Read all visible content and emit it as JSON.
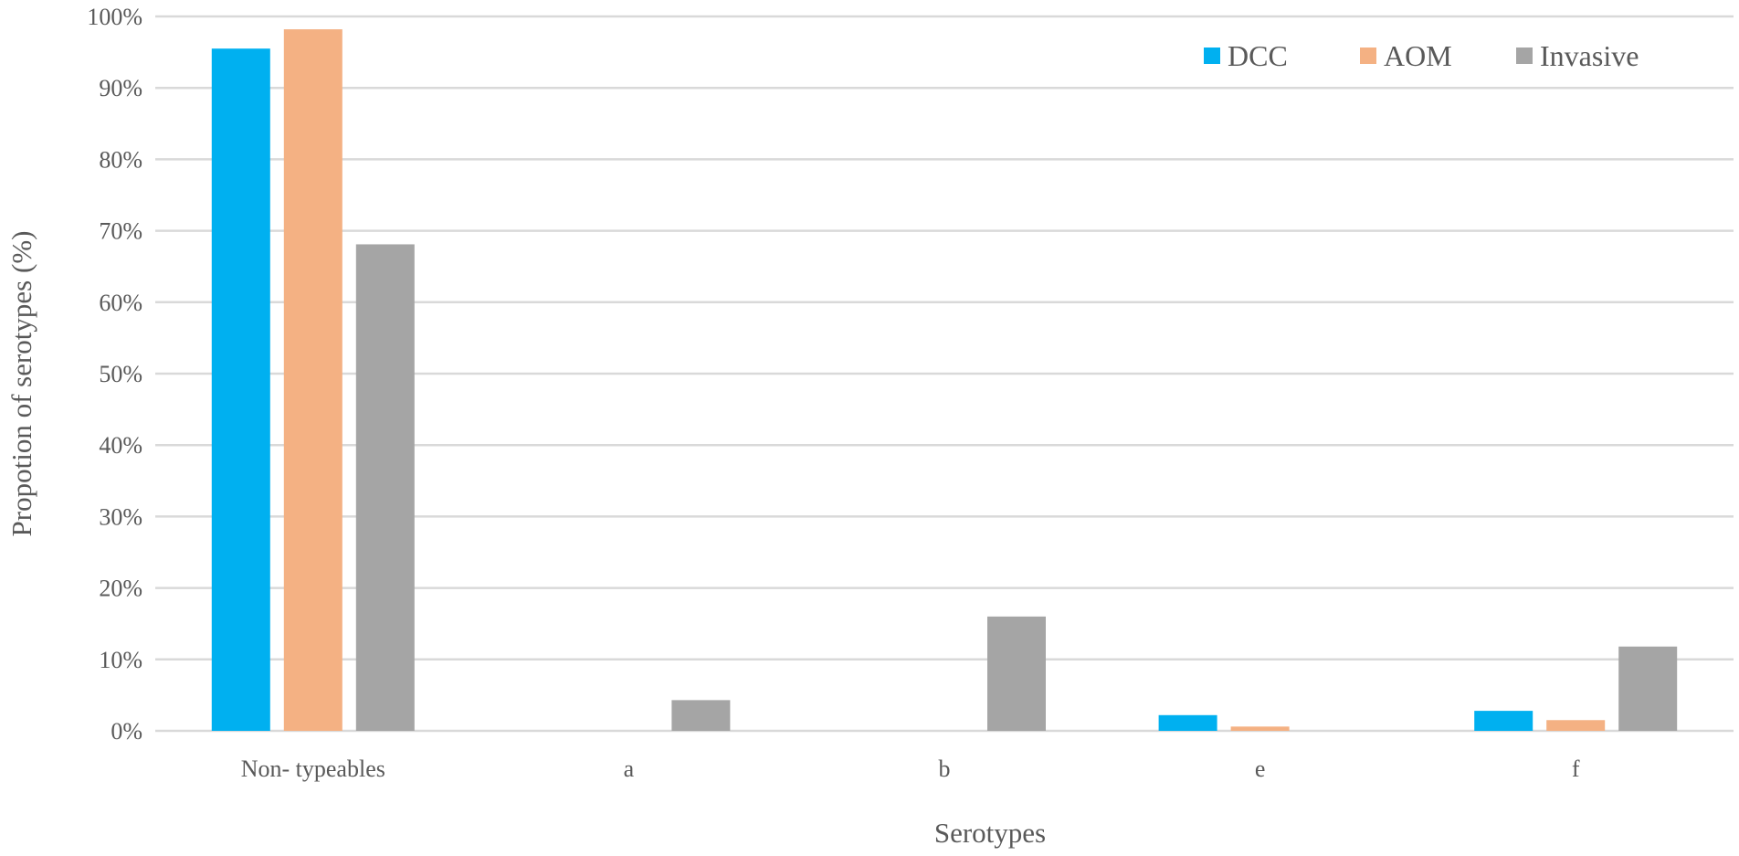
{
  "chart_data": {
    "type": "bar",
    "categories": [
      "Non- typeables",
      "a",
      "b",
      "e",
      "f"
    ],
    "series": [
      {
        "name": "DCC",
        "color": "#00B0F0",
        "values": [
          95.5,
          0,
          0,
          2.2,
          2.8
        ]
      },
      {
        "name": "AOM",
        "color": "#F4B183",
        "values": [
          98.2,
          0,
          0,
          0.6,
          1.5
        ]
      },
      {
        "name": "Invasive",
        "color": "#A5A5A5",
        "values": [
          68.1,
          4.3,
          16.0,
          0,
          11.8
        ]
      }
    ],
    "xlabel": "Serotypes",
    "ylabel": "Propotion of serotypes (%)",
    "ylim": [
      0,
      100
    ],
    "yticks": [
      "0%",
      "10%",
      "20%",
      "30%",
      "40%",
      "50%",
      "60%",
      "70%",
      "80%",
      "90%",
      "100%"
    ],
    "grid": true,
    "legend_position": "top-right"
  }
}
